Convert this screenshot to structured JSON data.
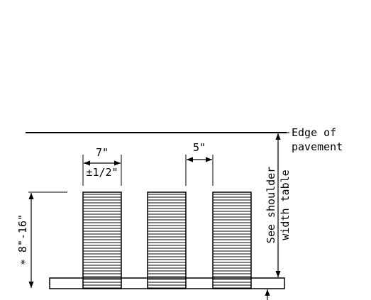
{
  "labels": {
    "edge_line1": "Edge of",
    "edge_line2": "pavement",
    "shoulder_line1": "See shoulder",
    "shoulder_line2": "width table",
    "depth_dim": "∗ 8\"-16\"",
    "groove_width": "7\"",
    "groove_tolerance": "±1/2\"",
    "groove_spacing": "5\""
  },
  "grooves": [
    {
      "id": "groove-1"
    },
    {
      "id": "groove-2"
    },
    {
      "id": "groove-3"
    }
  ]
}
